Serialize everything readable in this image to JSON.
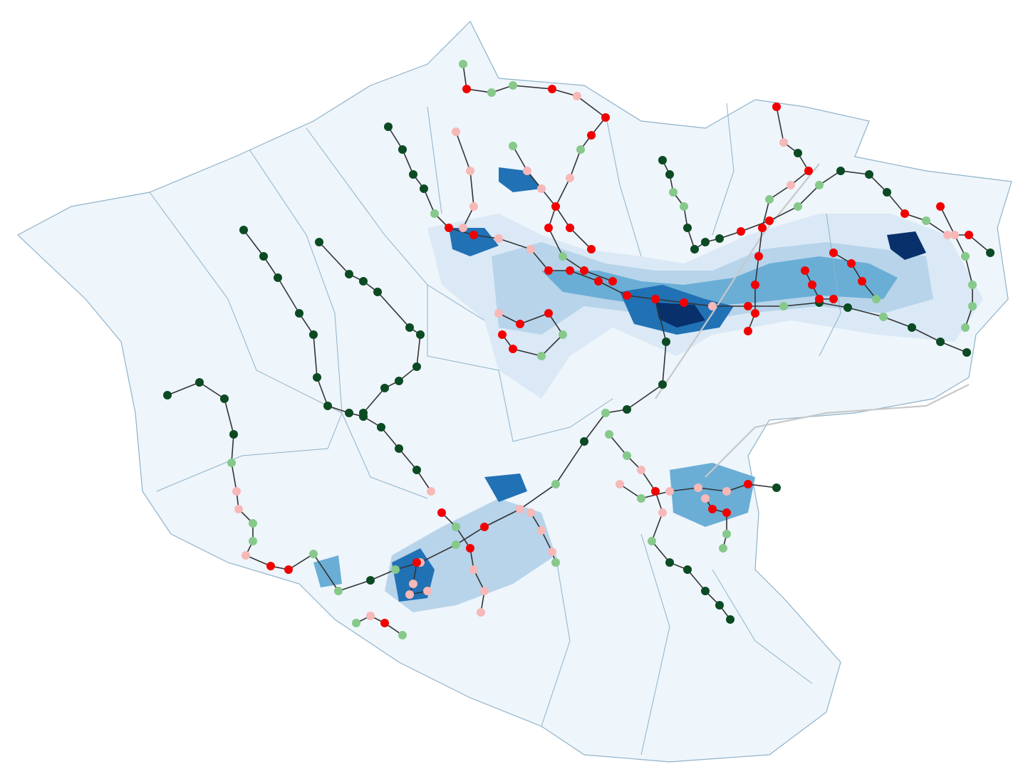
{
  "map": {
    "colors": {
      "background": "#ffffff",
      "region_fill": "#eef5fb",
      "border": "#8fb3c9",
      "density": [
        "#dbe9f6",
        "#b7d4ea",
        "#6aaed6",
        "#2171b5",
        "#08306b"
      ],
      "road": "#c8c8c8",
      "route_line": "#333333"
    },
    "stop_colors": {
      "red": "#f20000",
      "pink": "#f7b8b8",
      "light_green": "#86c98a",
      "dark_green": "#0b4a22"
    }
  }
}
